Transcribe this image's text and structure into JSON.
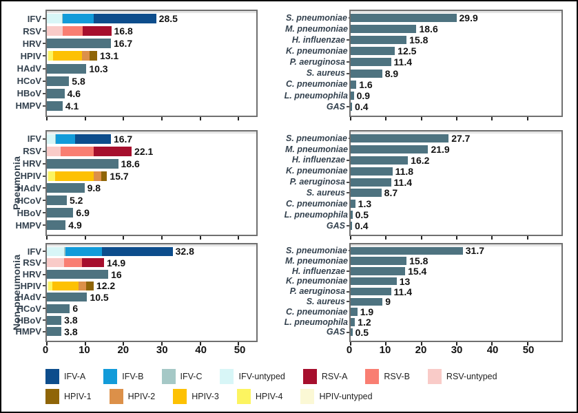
{
  "facet_rows": [
    {
      "label": ""
    },
    {
      "label": "Pneumonia"
    },
    {
      "label": "Non-pneumonia"
    }
  ],
  "axis": {
    "ticks": [
      0,
      10,
      20,
      30,
      40,
      50
    ]
  },
  "colors": {
    "bar_default": "#4e7380",
    "IFV-A": "#0d4d8c",
    "IFV-B": "#129bd9",
    "IFV-C": "#a5c8c6",
    "IFV-untyped": "#d8f6f7",
    "RSV-A": "#a60f2d",
    "RSV-B": "#f97e72",
    "RSV-untyped": "#f9cbc8",
    "HPIV-1": "#8f6508",
    "HPIV-2": "#dc9049",
    "HPIV-3": "#fdc103",
    "HPIV-4": "#fcf460",
    "HPIV-untyped": "#fbf8d5"
  },
  "legend": {
    "rows": [
      [
        "IFV-A",
        "IFV-B",
        "IFV-C",
        "IFV-untyped",
        "RSV-A",
        "RSV-B",
        "RSV-untyped"
      ],
      [
        "HPIV-1",
        "HPIV-2",
        "HPIV-3",
        "HPIV-4",
        "HPIV-untyped"
      ]
    ]
  },
  "chart_data": [
    {
      "type": "bar",
      "orientation": "horizontal",
      "panel": "viruses-all",
      "xlim": [
        0,
        54.6
      ],
      "xticks": [
        0,
        10,
        20,
        30,
        40,
        50
      ],
      "xmax": 54.6,
      "italic": false,
      "bars": [
        {
          "label": "IFV",
          "value": 28.5,
          "display": "28.5",
          "segments": [
            {
              "name": "IFV-untyped",
              "value": 3.9
            },
            {
              "name": "IFV-C",
              "value": 0.3
            },
            {
              "name": "IFV-B",
              "value": 8.0
            },
            {
              "name": "IFV-A",
              "value": 16.3
            }
          ]
        },
        {
          "label": "RSV",
          "value": 16.8,
          "display": "16.8",
          "segments": [
            {
              "name": "RSV-untyped",
              "value": 4.1
            },
            {
              "name": "RSV-B",
              "value": 5.3
            },
            {
              "name": "RSV-A",
              "value": 7.4
            }
          ]
        },
        {
          "label": "HRV",
          "value": 16.7,
          "display": "16.7"
        },
        {
          "label": "HPIV",
          "value": 13.1,
          "display": "13.1",
          "segments": [
            {
              "name": "HPIV-untyped",
              "value": 0.3
            },
            {
              "name": "HPIV-4",
              "value": 1.3
            },
            {
              "name": "HPIV-3",
              "value": 7.6
            },
            {
              "name": "HPIV-2",
              "value": 2.0
            },
            {
              "name": "HPIV-1",
              "value": 1.9
            }
          ]
        },
        {
          "label": "HAdV",
          "value": 10.3,
          "display": "10.3"
        },
        {
          "label": "HCoV",
          "value": 5.8,
          "display": "5.8"
        },
        {
          "label": "HBoV",
          "value": 4.6,
          "display": "4.6"
        },
        {
          "label": "HMPV",
          "value": 4.1,
          "display": "4.1"
        }
      ]
    },
    {
      "type": "bar",
      "orientation": "horizontal",
      "panel": "bacteria-all",
      "xlim": [
        0,
        59.6
      ],
      "xticks": [
        0,
        10,
        20,
        30,
        40,
        50
      ],
      "xmax": 59.6,
      "italic": true,
      "bars": [
        {
          "label": "S. pneumoniae",
          "value": 29.9,
          "display": "29.9"
        },
        {
          "label": "M. pneumoniae",
          "value": 18.6,
          "display": "18.6"
        },
        {
          "label": "H. influenzae",
          "value": 15.8,
          "display": "15.8"
        },
        {
          "label": "K. pneumoniae",
          "value": 12.5,
          "display": "12.5"
        },
        {
          "label": "P. aeruginosa",
          "value": 11.4,
          "display": "11.4"
        },
        {
          "label": "S. aureus",
          "value": 8.9,
          "display": "8.9"
        },
        {
          "label": "C. pneumoniae",
          "value": 1.6,
          "display": "1.6"
        },
        {
          "label": "L. pneumophila",
          "value": 0.9,
          "display": "0.9"
        },
        {
          "label": "GAS",
          "value": 0.4,
          "display": "0.4"
        }
      ]
    },
    {
      "type": "bar",
      "orientation": "horizontal",
      "panel": "viruses-pneumonia",
      "xlim": [
        0,
        54.6
      ],
      "xticks": [
        0,
        10,
        20,
        30,
        40,
        50
      ],
      "xmax": 54.6,
      "italic": false,
      "bars": [
        {
          "label": "IFV",
          "value": 16.7,
          "display": "16.7",
          "segments": [
            {
              "name": "IFV-untyped",
              "value": 2.1
            },
            {
              "name": "IFV-C",
              "value": 0.3
            },
            {
              "name": "IFV-B",
              "value": 4.9
            },
            {
              "name": "IFV-A",
              "value": 9.4
            }
          ]
        },
        {
          "label": "RSV",
          "value": 22.1,
          "display": "22.1",
          "segments": [
            {
              "name": "RSV-untyped",
              "value": 3.6
            },
            {
              "name": "RSV-B",
              "value": 8.6
            },
            {
              "name": "RSV-A",
              "value": 9.9
            }
          ]
        },
        {
          "label": "HRV",
          "value": 18.6,
          "display": "18.6"
        },
        {
          "label": "HPIV",
          "value": 15.7,
          "display": "15.7",
          "segments": [
            {
              "name": "HPIV-untyped",
              "value": 0.4
            },
            {
              "name": "HPIV-4",
              "value": 1.7
            },
            {
              "name": "HPIV-3",
              "value": 10.2
            },
            {
              "name": "HPIV-2",
              "value": 1.8
            },
            {
              "name": "HPIV-1",
              "value": 1.6
            }
          ]
        },
        {
          "label": "HAdV",
          "value": 9.8,
          "display": "9.8"
        },
        {
          "label": "HCoV",
          "value": 5.2,
          "display": "5.2"
        },
        {
          "label": "HBoV",
          "value": 6.9,
          "display": "6.9"
        },
        {
          "label": "HMPV",
          "value": 4.9,
          "display": "4.9"
        }
      ]
    },
    {
      "type": "bar",
      "orientation": "horizontal",
      "panel": "bacteria-pneumonia",
      "xlim": [
        0,
        59.6
      ],
      "xticks": [
        0,
        10,
        20,
        30,
        40,
        50
      ],
      "xmax": 59.6,
      "italic": true,
      "bars": [
        {
          "label": "S. pneumoniae",
          "value": 27.7,
          "display": "27.7"
        },
        {
          "label": "M. pneumoniae",
          "value": 21.9,
          "display": "21.9"
        },
        {
          "label": "H. influenzae",
          "value": 16.2,
          "display": "16.2"
        },
        {
          "label": "K. pneumoniae",
          "value": 11.8,
          "display": "11.8"
        },
        {
          "label": "P. aeruginosa",
          "value": 11.4,
          "display": "11.4"
        },
        {
          "label": "S. aureus",
          "value": 8.7,
          "display": "8.7"
        },
        {
          "label": "C. pneumoniae",
          "value": 1.3,
          "display": "1.3"
        },
        {
          "label": "L. pneumophila",
          "value": 0.5,
          "display": "0.5"
        },
        {
          "label": "GAS",
          "value": 0.4,
          "display": "0.4"
        }
      ]
    },
    {
      "type": "bar",
      "orientation": "horizontal",
      "panel": "viruses-non-pneumonia",
      "xlim": [
        0,
        54.6
      ],
      "xticks": [
        0,
        10,
        20,
        30,
        40,
        50
      ],
      "xmax": 54.6,
      "italic": false,
      "bars": [
        {
          "label": "IFV",
          "value": 32.8,
          "display": "32.8",
          "segments": [
            {
              "name": "IFV-untyped",
              "value": 4.4
            },
            {
              "name": "IFV-C",
              "value": 0.4
            },
            {
              "name": "IFV-B",
              "value": 9.5
            },
            {
              "name": "IFV-A",
              "value": 18.5
            }
          ]
        },
        {
          "label": "RSV",
          "value": 14.9,
          "display": "14.9",
          "segments": [
            {
              "name": "RSV-untyped",
              "value": 4.4
            },
            {
              "name": "RSV-B",
              "value": 4.8
            },
            {
              "name": "RSV-A",
              "value": 5.7
            }
          ]
        },
        {
          "label": "HRV",
          "value": 16,
          "display": "16"
        },
        {
          "label": "HPIV",
          "value": 12.2,
          "display": "12.2",
          "segments": [
            {
              "name": "HPIV-untyped",
              "value": 0.3
            },
            {
              "name": "HPIV-4",
              "value": 1.2
            },
            {
              "name": "HPIV-3",
              "value": 6.8
            },
            {
              "name": "HPIV-2",
              "value": 1.9
            },
            {
              "name": "HPIV-1",
              "value": 2.0
            }
          ]
        },
        {
          "label": "HAdV",
          "value": 10.5,
          "display": "10.5"
        },
        {
          "label": "HCoV",
          "value": 6,
          "display": "6"
        },
        {
          "label": "HBoV",
          "value": 3.8,
          "display": "3.8"
        },
        {
          "label": "HMPV",
          "value": 3.8,
          "display": "3.8"
        }
      ]
    },
    {
      "type": "bar",
      "orientation": "horizontal",
      "panel": "bacteria-non-pneumonia",
      "xlim": [
        0,
        59.6
      ],
      "xticks": [
        0,
        10,
        20,
        30,
        40,
        50
      ],
      "xmax": 59.6,
      "italic": true,
      "bars": [
        {
          "label": "S. pneumoniae",
          "value": 31.7,
          "display": "31.7"
        },
        {
          "label": "M. pneumoniae",
          "value": 15.8,
          "display": "15.8"
        },
        {
          "label": "H. influenzae",
          "value": 15.4,
          "display": "15.4"
        },
        {
          "label": "K. pneumoniae",
          "value": 13,
          "display": "13"
        },
        {
          "label": "P. aeruginosa",
          "value": 11.4,
          "display": "11.4"
        },
        {
          "label": "S. aureus",
          "value": 9,
          "display": "9"
        },
        {
          "label": "C. pneumoniae",
          "value": 1.9,
          "display": "1.9"
        },
        {
          "label": "L. pneumophila",
          "value": 1.2,
          "display": "1.2"
        },
        {
          "label": "GAS",
          "value": 0.5,
          "display": "0.5"
        }
      ]
    }
  ]
}
